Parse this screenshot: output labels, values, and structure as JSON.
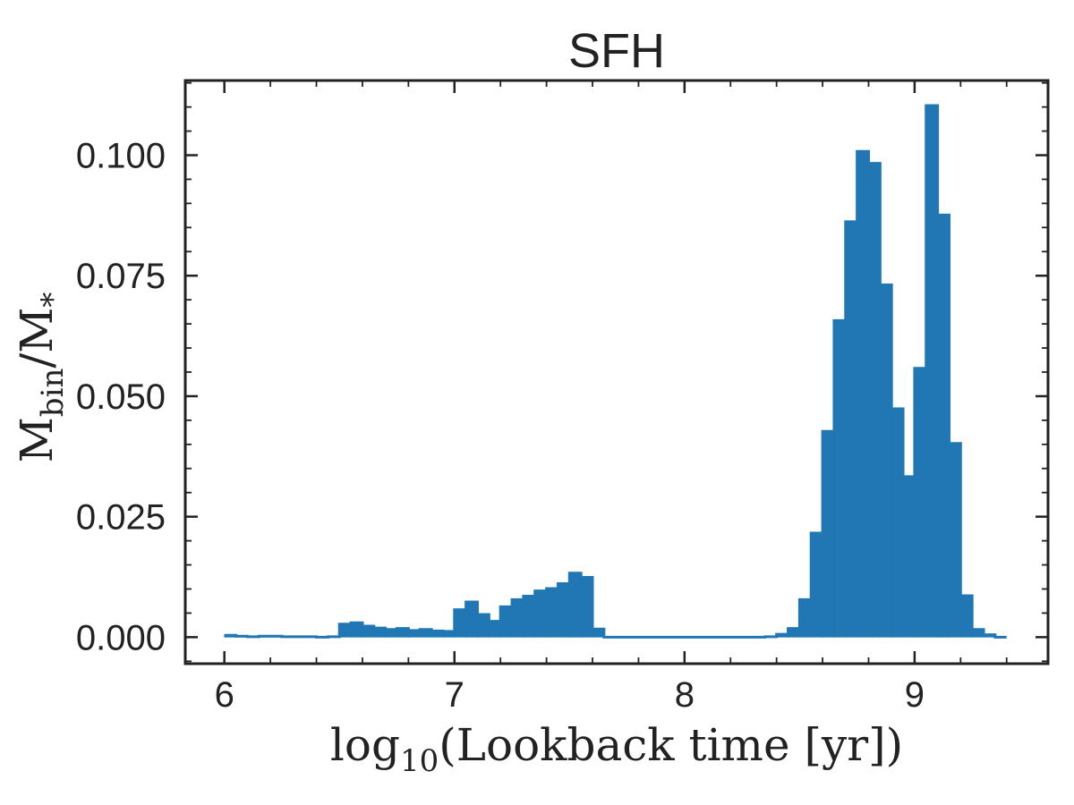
{
  "chart_data": {
    "type": "bar",
    "title": "SFH",
    "xlabel": {
      "prefix": "log",
      "subscript": "10",
      "rest": "(Lookback time [yr])"
    },
    "ylabel": {
      "main": "M",
      "subscript": "bin",
      "slash": "/M",
      "subscript2": "*"
    },
    "xlim": [
      5.83,
      9.58
    ],
    "ylim": [
      -0.0055,
      0.1155
    ],
    "xticks": [
      {
        "value": 6,
        "label": "6"
      },
      {
        "value": 7,
        "label": "7"
      },
      {
        "value": 8,
        "label": "8"
      },
      {
        "value": 9,
        "label": "9"
      }
    ],
    "yticks": [
      {
        "value": 0.0,
        "label": "0.000"
      },
      {
        "value": 0.025,
        "label": "0.025"
      },
      {
        "value": 0.05,
        "label": "0.050"
      },
      {
        "value": 0.075,
        "label": "0.075"
      },
      {
        "value": 0.1,
        "label": "0.100"
      }
    ],
    "x_minor_step": 0.2,
    "y_minor_step": 0.005,
    "color": "#2077b4",
    "bin_width": 0.05,
    "bins_start": [
      6.0,
      6.05,
      6.1,
      6.15,
      6.2,
      6.25,
      6.3,
      6.35,
      6.4,
      6.45,
      6.5,
      6.55,
      6.6,
      6.65,
      6.7,
      6.75,
      6.8,
      6.85,
      6.9,
      6.95,
      7.0,
      7.05,
      7.1,
      7.15,
      7.2,
      7.25,
      7.3,
      7.35,
      7.4,
      7.45,
      7.5,
      7.55,
      7.6,
      7.65,
      7.7,
      7.75,
      7.8,
      7.85,
      7.9,
      7.95,
      8.0,
      8.05,
      8.1,
      8.15,
      8.2,
      8.25,
      8.3,
      8.35,
      8.4,
      8.45,
      8.5,
      8.55,
      8.6,
      8.65,
      8.7,
      8.75,
      8.8,
      8.85,
      8.9,
      8.95,
      9.0,
      9.05,
      9.1,
      9.15,
      9.2,
      9.25,
      9.3,
      9.35
    ],
    "values": [
      0.0004,
      0.0002,
      0.0001,
      0.0002,
      0.0002,
      0.0001,
      0.0001,
      0.0001,
      0.0,
      0.0001,
      0.0027,
      0.003,
      0.0023,
      0.0019,
      0.0016,
      0.0018,
      0.0014,
      0.0016,
      0.0013,
      0.0012,
      0.0057,
      0.0073,
      0.0047,
      0.0033,
      0.0063,
      0.0078,
      0.0085,
      0.0096,
      0.0101,
      0.0111,
      0.0133,
      0.0124,
      0.0017,
      0.0,
      0.0,
      0.0,
      0.0,
      0.0,
      0.0,
      0.0,
      0.0,
      0.0,
      0.0,
      0.0,
      0.0,
      0.0,
      0.0,
      0.0001,
      0.0006,
      0.0018,
      0.0078,
      0.0216,
      0.0427,
      0.0657,
      0.0862,
      0.1008,
      0.0983,
      0.0731,
      0.0474,
      0.0333,
      0.0558,
      0.1103,
      0.0876,
      0.0402,
      0.0086,
      0.0016,
      0.0005,
      0.0
    ]
  }
}
